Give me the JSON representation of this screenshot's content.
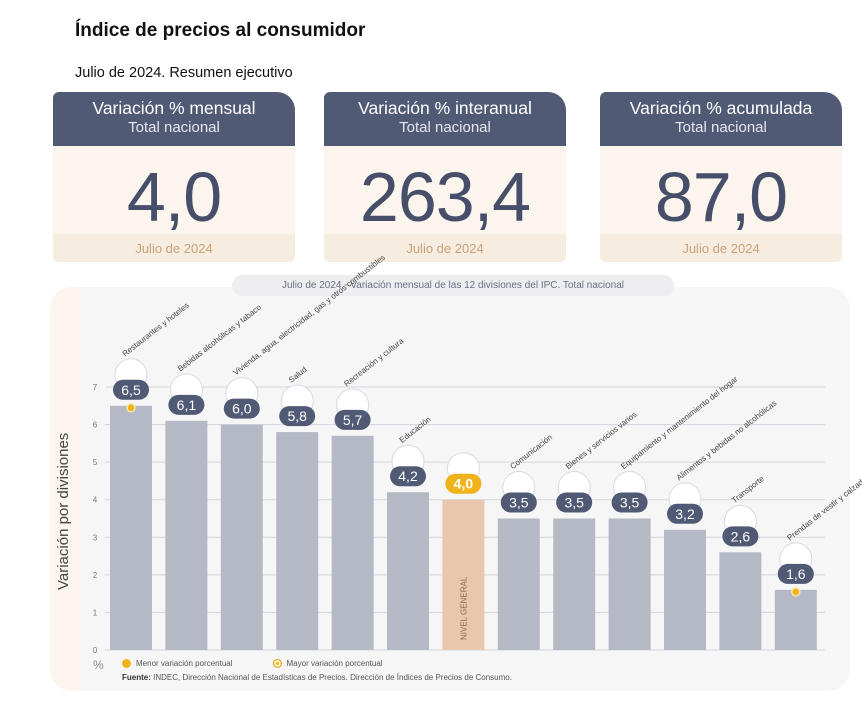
{
  "header": {
    "title": "Índice de precios al consumidor",
    "subtitle": "Julio de 2024. Resumen ejecutivo"
  },
  "kpis": [
    {
      "title": "Variación % mensual",
      "subtitle": "Total nacional",
      "value": "4,0",
      "footer": "Julio de 2024"
    },
    {
      "title": "Variación % interanual",
      "subtitle": "Total nacional",
      "value": "263,4",
      "footer": "Julio de 2024"
    },
    {
      "title": "Variación % acumulada",
      "subtitle": "Total nacional",
      "value": "87,0",
      "footer": "Julio de 2024"
    }
  ],
  "chart_data": {
    "type": "bar",
    "title": "Julio de 2024 - Variación mensual de las 12 divisiones del IPC. Total nacional",
    "ylabel": "Variación por divisiones",
    "yunit": "%",
    "ylim": [
      0,
      7
    ],
    "yticks": [
      "0",
      "1",
      "2",
      "3",
      "4",
      "5",
      "6",
      "7"
    ],
    "grid": true,
    "categories": [
      "Restaurantes y hoteles",
      "Bebidas alcohólicas y tabaco",
      "Vivienda, agua, electricidad, gas y otros combustibles",
      "Salud",
      "Recreación y cultura",
      "Educación",
      "NIVEL GENERAL",
      "Comunicación",
      "Bienes y servicios varios",
      "Equipamiento y mantenimiento del hogar",
      "Alimentos y bebidas no alcohólicas",
      "Transporte",
      "Prendas de vestir y calzado"
    ],
    "values": [
      6.5,
      6.1,
      6.0,
      5.8,
      5.7,
      4.2,
      4.0,
      3.5,
      3.5,
      3.5,
      3.2,
      2.6,
      1.6
    ],
    "value_labels": [
      "6,5",
      "6,1",
      "6,0",
      "5,8",
      "5,7",
      "4,2",
      "4,0",
      "3,5",
      "3,5",
      "3,5",
      "3,2",
      "2,6",
      "1,6"
    ],
    "highlight_index": 6,
    "max_index": 0,
    "min_index": 12,
    "colors": {
      "bar": "#b4b9c5",
      "highlight": "#e9c7ae",
      "badge": "#515a75",
      "badge_highlight": "#f0b31a",
      "marker": "#f0b31a"
    },
    "legend": [
      {
        "label": "Menor variación porcentual"
      },
      {
        "label": "Mayor variación porcentual"
      }
    ],
    "source_label": "Fuente:",
    "source_text": "INDEC, Dirección Nacional de Estadísticas de Precios. Dirección de Índices de Precios de Consumo."
  }
}
